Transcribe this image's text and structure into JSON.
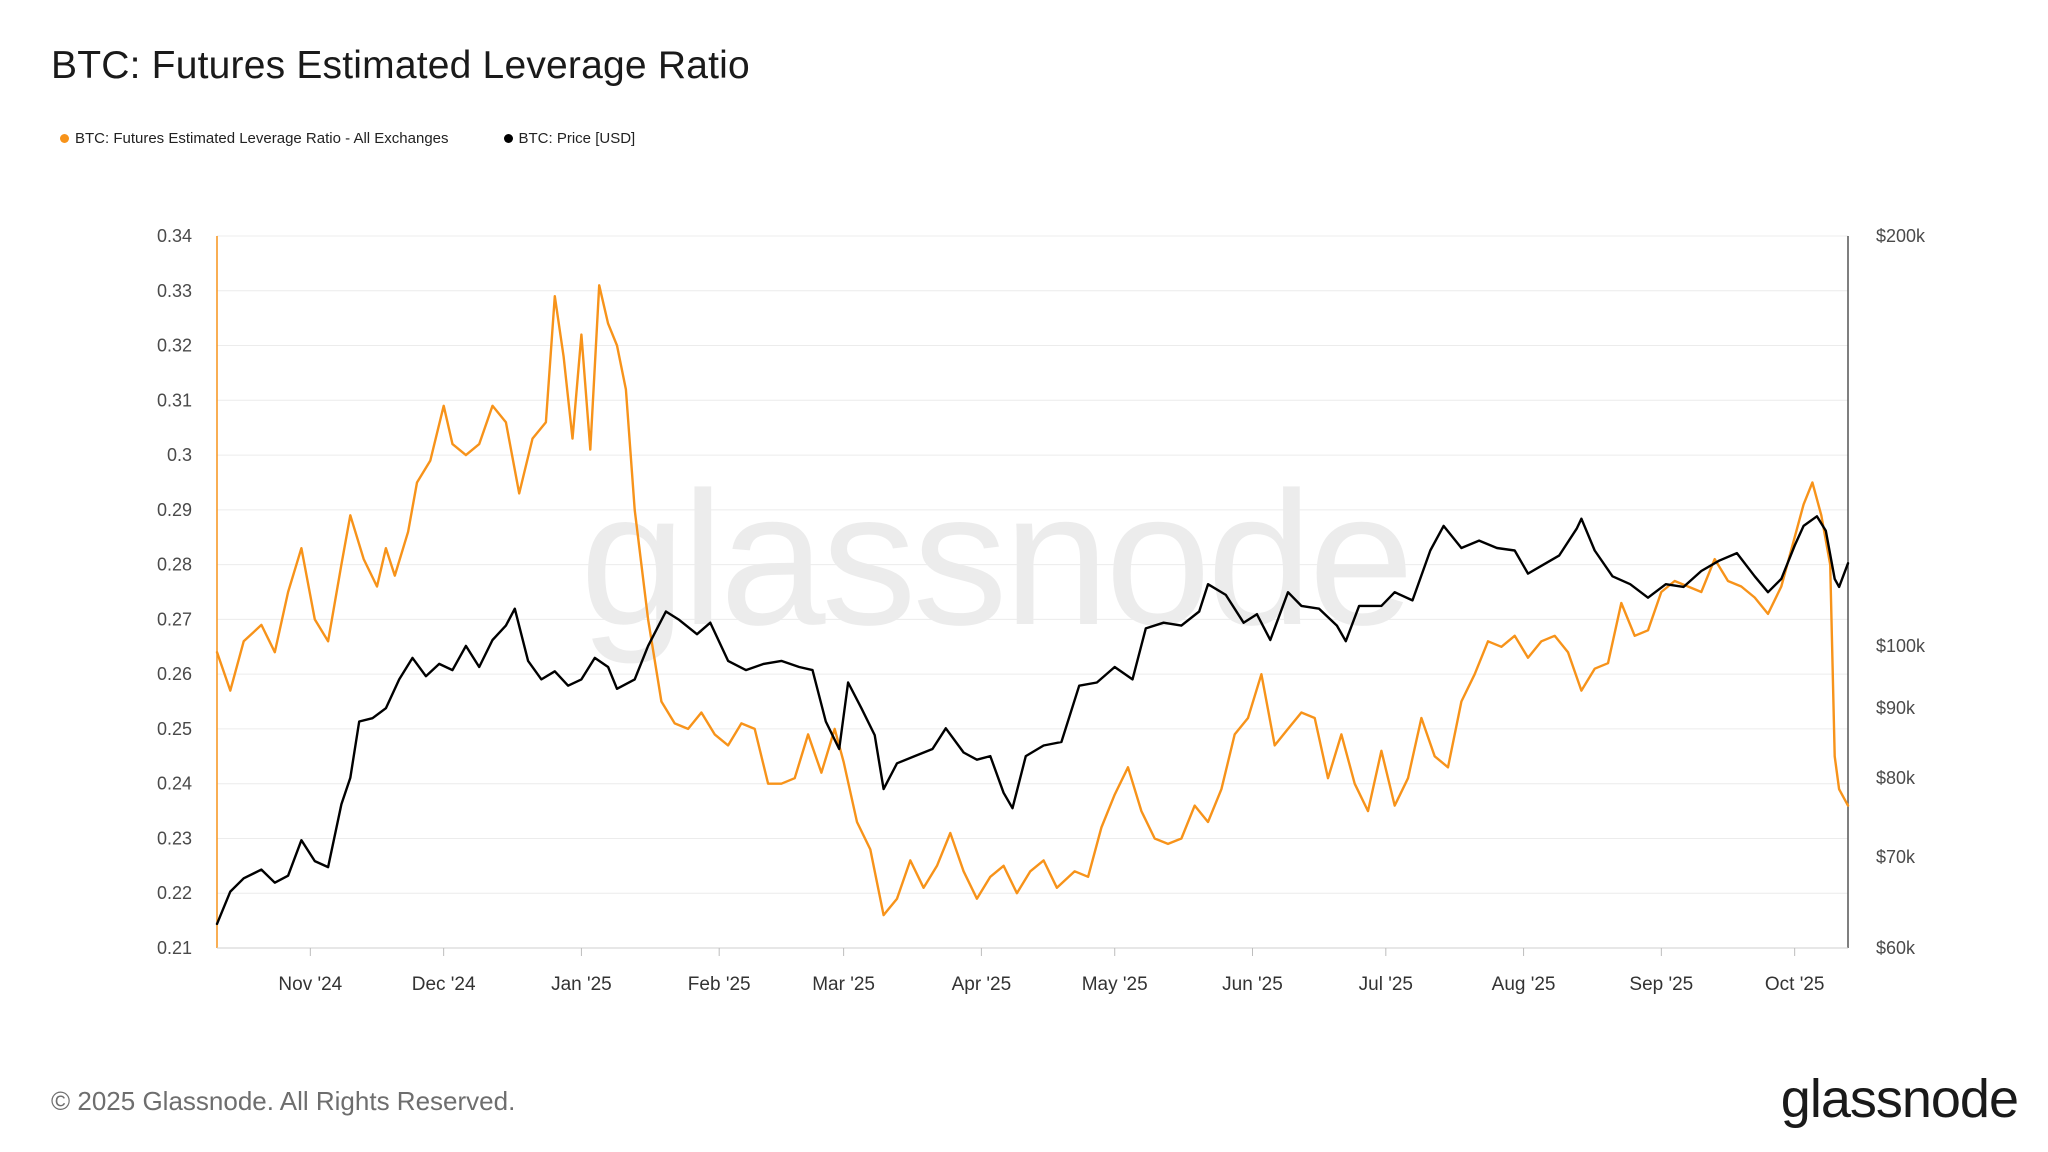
{
  "title": "BTC: Futures Estimated Leverage Ratio",
  "legend": [
    {
      "label": "BTC: Futures Estimated Leverage Ratio - All Exchanges",
      "color": "#f7931a"
    },
    {
      "label": "BTC: Price [USD]",
      "color": "#000000"
    }
  ],
  "watermark": "glassnode",
  "footer": {
    "copyright": "© 2025 Glassnode. All Rights Reserved.",
    "logo": "glassnode"
  },
  "chart_data": {
    "type": "line",
    "title": "BTC: Futures Estimated Leverage Ratio",
    "x_tick_labels": [
      "Nov '24",
      "Dec '24",
      "Jan '25",
      "Feb '25",
      "Mar '25",
      "Apr '25",
      "May '25",
      "Jun '25",
      "Jul '25",
      "Aug '25",
      "Sep '25",
      "Oct '25"
    ],
    "x_range": [
      "2024-10-11",
      "2025-10-13"
    ],
    "y_left": {
      "range": [
        0.21,
        0.34
      ],
      "ticks": [
        "0.21",
        "0.22",
        "0.23",
        "0.24",
        "0.25",
        "0.26",
        "0.27",
        "0.28",
        "0.29",
        "0.3",
        "0.31",
        "0.32",
        "0.33",
        "0.34"
      ]
    },
    "y_right": {
      "scale": "log",
      "range": [
        60000,
        200000
      ],
      "ticks": [
        {
          "label": "$60k",
          "value": 60000
        },
        {
          "label": "$70k",
          "value": 70000
        },
        {
          "label": "$80k",
          "value": 80000
        },
        {
          "label": "$90k",
          "value": 90000
        },
        {
          "label": "$100k",
          "value": 100000
        },
        {
          "label": "$200k",
          "value": 200000
        }
      ]
    },
    "grid": true,
    "legend_position": "top-left",
    "series": [
      {
        "name": "BTC: Futures Estimated Leverage Ratio - All Exchanges",
        "axis": "left",
        "color": "#f7931a",
        "points": [
          [
            "2024-10-11",
            0.264
          ],
          [
            "2024-10-14",
            0.257
          ],
          [
            "2024-10-17",
            0.266
          ],
          [
            "2024-10-21",
            0.269
          ],
          [
            "2024-10-24",
            0.264
          ],
          [
            "2024-10-27",
            0.275
          ],
          [
            "2024-10-30",
            0.283
          ],
          [
            "2024-11-02",
            0.27
          ],
          [
            "2024-11-05",
            0.266
          ],
          [
            "2024-11-08",
            0.28
          ],
          [
            "2024-11-10",
            0.289
          ],
          [
            "2024-11-13",
            0.281
          ],
          [
            "2024-11-16",
            0.276
          ],
          [
            "2024-11-18",
            0.283
          ],
          [
            "2024-11-20",
            0.278
          ],
          [
            "2024-11-23",
            0.286
          ],
          [
            "2024-11-25",
            0.295
          ],
          [
            "2024-11-28",
            0.299
          ],
          [
            "2024-12-01",
            0.309
          ],
          [
            "2024-12-03",
            0.302
          ],
          [
            "2024-12-06",
            0.3
          ],
          [
            "2024-12-09",
            0.302
          ],
          [
            "2024-12-12",
            0.309
          ],
          [
            "2024-12-15",
            0.306
          ],
          [
            "2024-12-18",
            0.293
          ],
          [
            "2024-12-21",
            0.303
          ],
          [
            "2024-12-24",
            0.306
          ],
          [
            "2024-12-26",
            0.329
          ],
          [
            "2024-12-28",
            0.318
          ],
          [
            "2024-12-30",
            0.303
          ],
          [
            "2025-01-01",
            0.322
          ],
          [
            "2025-01-03",
            0.301
          ],
          [
            "2025-01-05",
            0.331
          ],
          [
            "2025-01-07",
            0.324
          ],
          [
            "2025-01-09",
            0.32
          ],
          [
            "2025-01-11",
            0.312
          ],
          [
            "2025-01-13",
            0.29
          ],
          [
            "2025-01-16",
            0.27
          ],
          [
            "2025-01-19",
            0.255
          ],
          [
            "2025-01-22",
            0.251
          ],
          [
            "2025-01-25",
            0.25
          ],
          [
            "2025-01-28",
            0.253
          ],
          [
            "2025-01-31",
            0.249
          ],
          [
            "2025-02-03",
            0.247
          ],
          [
            "2025-02-06",
            0.251
          ],
          [
            "2025-02-09",
            0.25
          ],
          [
            "2025-02-12",
            0.24
          ],
          [
            "2025-02-15",
            0.24
          ],
          [
            "2025-02-18",
            0.241
          ],
          [
            "2025-02-21",
            0.249
          ],
          [
            "2025-02-24",
            0.242
          ],
          [
            "2025-02-27",
            0.25
          ],
          [
            "2025-03-01",
            0.244
          ],
          [
            "2025-03-04",
            0.233
          ],
          [
            "2025-03-07",
            0.228
          ],
          [
            "2025-03-10",
            0.216
          ],
          [
            "2025-03-13",
            0.219
          ],
          [
            "2025-03-16",
            0.226
          ],
          [
            "2025-03-19",
            0.221
          ],
          [
            "2025-03-22",
            0.225
          ],
          [
            "2025-03-25",
            0.231
          ],
          [
            "2025-03-28",
            0.224
          ],
          [
            "2025-03-31",
            0.219
          ],
          [
            "2025-04-03",
            0.223
          ],
          [
            "2025-04-06",
            0.225
          ],
          [
            "2025-04-09",
            0.22
          ],
          [
            "2025-04-12",
            0.224
          ],
          [
            "2025-04-15",
            0.226
          ],
          [
            "2025-04-18",
            0.221
          ],
          [
            "2025-04-22",
            0.224
          ],
          [
            "2025-04-25",
            0.223
          ],
          [
            "2025-04-28",
            0.232
          ],
          [
            "2025-05-01",
            0.238
          ],
          [
            "2025-05-04",
            0.243
          ],
          [
            "2025-05-07",
            0.235
          ],
          [
            "2025-05-10",
            0.23
          ],
          [
            "2025-05-13",
            0.229
          ],
          [
            "2025-05-16",
            0.23
          ],
          [
            "2025-05-19",
            0.236
          ],
          [
            "2025-05-22",
            0.233
          ],
          [
            "2025-05-25",
            0.239
          ],
          [
            "2025-05-28",
            0.249
          ],
          [
            "2025-05-31",
            0.252
          ],
          [
            "2025-06-03",
            0.26
          ],
          [
            "2025-06-06",
            0.247
          ],
          [
            "2025-06-09",
            0.25
          ],
          [
            "2025-06-12",
            0.253
          ],
          [
            "2025-06-15",
            0.252
          ],
          [
            "2025-06-18",
            0.241
          ],
          [
            "2025-06-21",
            0.249
          ],
          [
            "2025-06-24",
            0.24
          ],
          [
            "2025-06-27",
            0.235
          ],
          [
            "2025-06-30",
            0.246
          ],
          [
            "2025-07-03",
            0.236
          ],
          [
            "2025-07-06",
            0.241
          ],
          [
            "2025-07-09",
            0.252
          ],
          [
            "2025-07-12",
            0.245
          ],
          [
            "2025-07-15",
            0.243
          ],
          [
            "2025-07-18",
            0.255
          ],
          [
            "2025-07-21",
            0.26
          ],
          [
            "2025-07-24",
            0.266
          ],
          [
            "2025-07-27",
            0.265
          ],
          [
            "2025-07-30",
            0.267
          ],
          [
            "2025-08-02",
            0.263
          ],
          [
            "2025-08-05",
            0.266
          ],
          [
            "2025-08-08",
            0.267
          ],
          [
            "2025-08-11",
            0.264
          ],
          [
            "2025-08-14",
            0.257
          ],
          [
            "2025-08-17",
            0.261
          ],
          [
            "2025-08-20",
            0.262
          ],
          [
            "2025-08-23",
            0.273
          ],
          [
            "2025-08-26",
            0.267
          ],
          [
            "2025-08-29",
            0.268
          ],
          [
            "2025-09-01",
            0.275
          ],
          [
            "2025-09-04",
            0.277
          ],
          [
            "2025-09-07",
            0.276
          ],
          [
            "2025-09-10",
            0.275
          ],
          [
            "2025-09-13",
            0.281
          ],
          [
            "2025-09-16",
            0.277
          ],
          [
            "2025-09-19",
            0.276
          ],
          [
            "2025-09-22",
            0.274
          ],
          [
            "2025-09-25",
            0.271
          ],
          [
            "2025-09-28",
            0.276
          ],
          [
            "2025-10-01",
            0.285
          ],
          [
            "2025-10-03",
            0.291
          ],
          [
            "2025-10-05",
            0.295
          ],
          [
            "2025-10-07",
            0.289
          ],
          [
            "2025-10-09",
            0.28
          ],
          [
            "2025-10-10",
            0.245
          ],
          [
            "2025-10-11",
            0.239
          ],
          [
            "2025-10-13",
            0.236
          ]
        ]
      },
      {
        "name": "BTC: Price [USD]",
        "axis": "right",
        "color": "#000000",
        "points": [
          [
            "2024-10-11",
            62500
          ],
          [
            "2024-10-14",
            66000
          ],
          [
            "2024-10-17",
            67500
          ],
          [
            "2024-10-21",
            68500
          ],
          [
            "2024-10-24",
            67000
          ],
          [
            "2024-10-27",
            67800
          ],
          [
            "2024-10-30",
            72000
          ],
          [
            "2024-11-02",
            69500
          ],
          [
            "2024-11-05",
            68800
          ],
          [
            "2024-11-08",
            76500
          ],
          [
            "2024-11-10",
            80000
          ],
          [
            "2024-11-12",
            88000
          ],
          [
            "2024-11-15",
            88500
          ],
          [
            "2024-11-18",
            90000
          ],
          [
            "2024-11-21",
            94500
          ],
          [
            "2024-11-24",
            98000
          ],
          [
            "2024-11-27",
            95000
          ],
          [
            "2024-11-30",
            97000
          ],
          [
            "2024-12-03",
            96000
          ],
          [
            "2024-12-06",
            100000
          ],
          [
            "2024-12-09",
            96500
          ],
          [
            "2024-12-12",
            101000
          ],
          [
            "2024-12-15",
            103500
          ],
          [
            "2024-12-17",
            106500
          ],
          [
            "2024-12-20",
            97500
          ],
          [
            "2024-12-23",
            94500
          ],
          [
            "2024-12-26",
            95800
          ],
          [
            "2024-12-29",
            93500
          ],
          [
            "2025-01-01",
            94500
          ],
          [
            "2025-01-04",
            98000
          ],
          [
            "2025-01-07",
            96500
          ],
          [
            "2025-01-09",
            93000
          ],
          [
            "2025-01-13",
            94500
          ],
          [
            "2025-01-16",
            100000
          ],
          [
            "2025-01-20",
            106000
          ],
          [
            "2025-01-23",
            104500
          ],
          [
            "2025-01-27",
            102000
          ],
          [
            "2025-01-30",
            104000
          ],
          [
            "2025-02-03",
            97500
          ],
          [
            "2025-02-07",
            96000
          ],
          [
            "2025-02-11",
            97000
          ],
          [
            "2025-02-15",
            97500
          ],
          [
            "2025-02-19",
            96500
          ],
          [
            "2025-02-22",
            96000
          ],
          [
            "2025-02-25",
            88000
          ],
          [
            "2025-02-28",
            84000
          ],
          [
            "2025-03-02",
            94000
          ],
          [
            "2025-03-05",
            90000
          ],
          [
            "2025-03-08",
            86000
          ],
          [
            "2025-03-10",
            78500
          ],
          [
            "2025-03-13",
            82000
          ],
          [
            "2025-03-17",
            83000
          ],
          [
            "2025-03-21",
            84000
          ],
          [
            "2025-03-24",
            87000
          ],
          [
            "2025-03-28",
            83500
          ],
          [
            "2025-03-31",
            82500
          ],
          [
            "2025-04-03",
            83000
          ],
          [
            "2025-04-06",
            78000
          ],
          [
            "2025-04-08",
            76000
          ],
          [
            "2025-04-11",
            83000
          ],
          [
            "2025-04-15",
            84500
          ],
          [
            "2025-04-19",
            85000
          ],
          [
            "2025-04-23",
            93500
          ],
          [
            "2025-04-27",
            94000
          ],
          [
            "2025-05-01",
            96500
          ],
          [
            "2025-05-05",
            94500
          ],
          [
            "2025-05-08",
            103000
          ],
          [
            "2025-05-12",
            104000
          ],
          [
            "2025-05-16",
            103500
          ],
          [
            "2025-05-20",
            106000
          ],
          [
            "2025-05-22",
            111000
          ],
          [
            "2025-05-26",
            109000
          ],
          [
            "2025-05-30",
            104000
          ],
          [
            "2025-06-02",
            105500
          ],
          [
            "2025-06-05",
            101000
          ],
          [
            "2025-06-09",
            109500
          ],
          [
            "2025-06-12",
            107000
          ],
          [
            "2025-06-16",
            106500
          ],
          [
            "2025-06-20",
            103500
          ],
          [
            "2025-06-22",
            100800
          ],
          [
            "2025-06-25",
            107000
          ],
          [
            "2025-06-30",
            107000
          ],
          [
            "2025-07-03",
            109500
          ],
          [
            "2025-07-07",
            108000
          ],
          [
            "2025-07-11",
            117500
          ],
          [
            "2025-07-14",
            122500
          ],
          [
            "2025-07-18",
            118000
          ],
          [
            "2025-07-22",
            119500
          ],
          [
            "2025-07-26",
            118000
          ],
          [
            "2025-07-30",
            117500
          ],
          [
            "2025-08-02",
            113000
          ],
          [
            "2025-08-05",
            114500
          ],
          [
            "2025-08-09",
            116500
          ],
          [
            "2025-08-13",
            122000
          ],
          [
            "2025-08-14",
            124000
          ],
          [
            "2025-08-17",
            117500
          ],
          [
            "2025-08-21",
            112500
          ],
          [
            "2025-08-25",
            111000
          ],
          [
            "2025-08-29",
            108500
          ],
          [
            "2025-09-02",
            111000
          ],
          [
            "2025-09-06",
            110500
          ],
          [
            "2025-09-10",
            113500
          ],
          [
            "2025-09-14",
            115500
          ],
          [
            "2025-09-18",
            117000
          ],
          [
            "2025-09-22",
            112500
          ],
          [
            "2025-09-25",
            109500
          ],
          [
            "2025-09-28",
            112000
          ],
          [
            "2025-10-01",
            118500
          ],
          [
            "2025-10-03",
            122500
          ],
          [
            "2025-10-06",
            124500
          ],
          [
            "2025-10-08",
            121500
          ],
          [
            "2025-10-10",
            112000
          ],
          [
            "2025-10-11",
            110500
          ],
          [
            "2025-10-13",
            115000
          ]
        ]
      }
    ]
  }
}
